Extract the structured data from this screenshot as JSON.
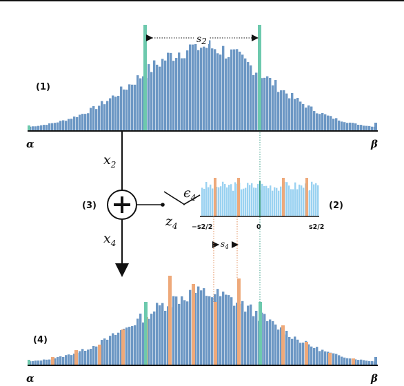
{
  "colors": {
    "bar": "#6c97c4",
    "bar_dark": "#5a86b8",
    "teal": "#6dc9ad",
    "teal_dark": "#3aa08a",
    "orange": "#eea97a",
    "orange_dark": "#e08a55",
    "light_blue": "#9ad2f1",
    "axis": "#111111"
  },
  "labels": {
    "step1": "(1)",
    "step2": "(2)",
    "step3": "(3)",
    "step4": "(4)",
    "alpha_top": "α",
    "beta_top": "β",
    "alpha_bottom": "α",
    "beta_bottom": "β",
    "x2_main": "x",
    "x2_sub": "2",
    "x4_main": "x",
    "x4_sub": "4",
    "z4_main": "z",
    "z4_sub": "4",
    "eps4_main": "ϵ",
    "eps4_sub": "4",
    "s2_main": "s",
    "s2_sub": "2",
    "s4_main": "s",
    "s4_sub": "4",
    "tick_left": "−s2/2",
    "tick_zero": "0",
    "tick_right": "s2/2"
  }
}
